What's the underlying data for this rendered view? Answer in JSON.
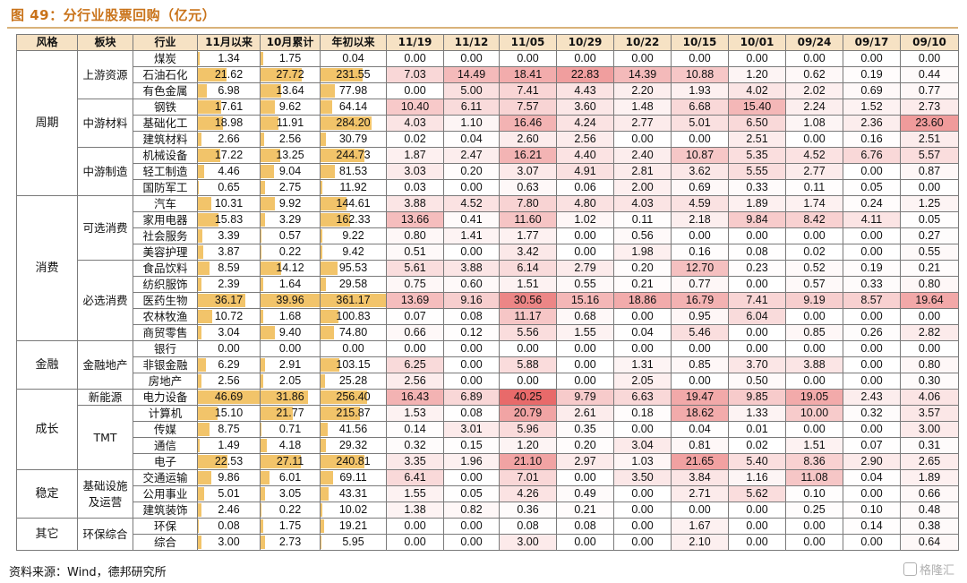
{
  "title": "图 49：分行业股票回购（亿元）",
  "source": "资料来源：Wind，德邦研究所",
  "watermark": "格隆汇",
  "colors": {
    "bar": "#f2c46a",
    "header_bg": "#f6e2c4",
    "title": "#c9731a",
    "heat_max": "#e86a6a"
  },
  "chart_data": {
    "type": "table",
    "columns": [
      "风格",
      "板块",
      "行业",
      "11月以来",
      "10月累计",
      "年初以来",
      "11/19",
      "11/12",
      "11/05",
      "10/29",
      "10/22",
      "10/15",
      "10/01",
      "09/24",
      "09/17",
      "09/10"
    ],
    "groups": [
      {
        "style": "周期",
        "sectors": [
          {
            "name": "上游资源",
            "rows": [
              {
                "industry": "煤炭",
                "values": [
                  1.34,
                  1.75,
                  0.04,
                  0.0,
                  0.0,
                  0.0,
                  0.0,
                  0.0,
                  0.0,
                  0.0,
                  0.0,
                  0.0,
                  0.0
                ]
              },
              {
                "industry": "石油石化",
                "values": [
                  21.62,
                  27.72,
                  231.55,
                  7.03,
                  14.49,
                  18.41,
                  22.83,
                  14.39,
                  10.88,
                  1.2,
                  0.62,
                  0.19,
                  0.44
                ]
              },
              {
                "industry": "有色金属",
                "values": [
                  6.98,
                  13.64,
                  77.98,
                  0.0,
                  5.0,
                  7.41,
                  4.43,
                  2.2,
                  1.93,
                  4.02,
                  2.02,
                  0.69,
                  0.77
                ]
              }
            ]
          },
          {
            "name": "中游材料",
            "rows": [
              {
                "industry": "钢铁",
                "values": [
                  17.61,
                  9.62,
                  64.14,
                  10.4,
                  6.11,
                  7.57,
                  3.6,
                  1.48,
                  6.68,
                  15.4,
                  2.24,
                  1.52,
                  2.73
                ]
              },
              {
                "industry": "基础化工",
                "values": [
                  18.98,
                  11.91,
                  284.2,
                  4.03,
                  1.1,
                  16.46,
                  4.24,
                  2.77,
                  5.01,
                  6.5,
                  1.08,
                  2.36,
                  23.6
                ]
              },
              {
                "industry": "建筑材料",
                "values": [
                  2.66,
                  2.56,
                  30.79,
                  0.02,
                  0.04,
                  2.6,
                  2.56,
                  0.0,
                  0.0,
                  2.51,
                  0.0,
                  0.16,
                  2.51
                ]
              }
            ]
          },
          {
            "name": "中游制造",
            "rows": [
              {
                "industry": "机械设备",
                "values": [
                  17.22,
                  13.25,
                  244.73,
                  1.87,
                  2.47,
                  16.21,
                  4.4,
                  2.4,
                  10.87,
                  5.35,
                  4.52,
                  6.76,
                  5.57
                ]
              },
              {
                "industry": "轻工制造",
                "values": [
                  4.46,
                  9.04,
                  81.53,
                  3.03,
                  0.2,
                  3.07,
                  4.91,
                  2.81,
                  3.62,
                  5.55,
                  2.77,
                  0.0,
                  0.87
                ]
              },
              {
                "industry": "国防军工",
                "values": [
                  0.65,
                  2.75,
                  11.92,
                  0.03,
                  0.0,
                  0.63,
                  0.06,
                  2.0,
                  0.69,
                  0.33,
                  0.11,
                  0.05,
                  0.0
                ]
              }
            ]
          }
        ]
      },
      {
        "style": "消费",
        "sectors": [
          {
            "name": "可选消费",
            "rows": [
              {
                "industry": "汽车",
                "values": [
                  10.31,
                  9.92,
                  144.61,
                  3.88,
                  4.52,
                  7.8,
                  4.8,
                  4.03,
                  4.59,
                  1.89,
                  1.74,
                  0.24,
                  1.25
                ]
              },
              {
                "industry": "家用电器",
                "values": [
                  15.83,
                  3.29,
                  162.33,
                  13.66,
                  0.41,
                  11.6,
                  1.02,
                  0.11,
                  2.18,
                  9.84,
                  8.42,
                  4.11,
                  0.05
                ]
              },
              {
                "industry": "社会服务",
                "values": [
                  3.39,
                  0.57,
                  9.22,
                  0.8,
                  1.41,
                  1.77,
                  0.0,
                  0.56,
                  0.0,
                  0.0,
                  0.0,
                  0.0,
                  0.27
                ]
              },
              {
                "industry": "美容护理",
                "values": [
                  3.87,
                  0.22,
                  9.42,
                  0.51,
                  0.0,
                  3.42,
                  0.0,
                  1.98,
                  0.16,
                  0.08,
                  0.02,
                  0.0,
                  0.55
                ]
              }
            ]
          },
          {
            "name": "必选消费",
            "rows": [
              {
                "industry": "食品饮料",
                "values": [
                  8.59,
                  14.12,
                  95.53,
                  5.61,
                  3.88,
                  6.14,
                  2.79,
                  0.2,
                  12.7,
                  0.23,
                  0.52,
                  0.19,
                  0.21
                ]
              },
              {
                "industry": "纺织服饰",
                "values": [
                  2.39,
                  1.64,
                  29.58,
                  0.75,
                  0.6,
                  1.51,
                  0.55,
                  0.21,
                  0.77,
                  0.0,
                  0.57,
                  0.33,
                  0.8
                ]
              },
              {
                "industry": "医药生物",
                "values": [
                  36.17,
                  39.96,
                  361.17,
                  13.69,
                  9.16,
                  30.56,
                  15.16,
                  18.86,
                  16.79,
                  7.41,
                  9.19,
                  8.57,
                  19.64
                ]
              },
              {
                "industry": "农林牧渔",
                "values": [
                  10.72,
                  1.68,
                  100.83,
                  0.07,
                  0.08,
                  11.17,
                  0.68,
                  0.0,
                  0.95,
                  6.04,
                  0.0,
                  0.0,
                  0.0
                ]
              },
              {
                "industry": "商贸零售",
                "values": [
                  3.04,
                  9.4,
                  74.8,
                  0.66,
                  0.12,
                  5.56,
                  1.55,
                  0.04,
                  5.46,
                  0.0,
                  0.85,
                  0.26,
                  2.82
                ]
              }
            ]
          }
        ]
      },
      {
        "style": "金融",
        "sectors": [
          {
            "name": "金融地产",
            "rows": [
              {
                "industry": "银行",
                "values": [
                  0.0,
                  0.0,
                  0.0,
                  0.0,
                  0.0,
                  0.0,
                  0.0,
                  0.0,
                  0.0,
                  0.0,
                  0.0,
                  0.0,
                  0.0
                ]
              },
              {
                "industry": "非银金融",
                "values": [
                  6.29,
                  2.91,
                  103.15,
                  6.25,
                  0.0,
                  5.88,
                  0.0,
                  1.31,
                  0.85,
                  3.7,
                  3.88,
                  0.0,
                  0.8
                ]
              },
              {
                "industry": "房地产",
                "values": [
                  2.56,
                  2.05,
                  25.28,
                  2.56,
                  0.0,
                  0.0,
                  0.0,
                  2.05,
                  0.0,
                  0.5,
                  0.0,
                  0.0,
                  0.3
                ]
              }
            ]
          }
        ]
      },
      {
        "style": "成长",
        "sectors": [
          {
            "name": "新能源",
            "rows": [
              {
                "industry": "电力设备",
                "values": [
                  46.69,
                  31.86,
                  256.4,
                  16.43,
                  6.89,
                  40.25,
                  9.79,
                  6.63,
                  19.47,
                  9.85,
                  19.05,
                  2.43,
                  4.06
                ]
              }
            ]
          },
          {
            "name": "TMT",
            "rows": [
              {
                "industry": "计算机",
                "values": [
                  15.1,
                  21.77,
                  215.87,
                  1.53,
                  0.08,
                  20.79,
                  2.61,
                  0.18,
                  18.62,
                  1.33,
                  10.0,
                  0.32,
                  3.57
                ]
              },
              {
                "industry": "传媒",
                "values": [
                  8.75,
                  0.71,
                  41.56,
                  0.14,
                  3.01,
                  5.96,
                  0.35,
                  0.0,
                  0.04,
                  0.01,
                  0.0,
                  0.0,
                  3.0
                ]
              },
              {
                "industry": "通信",
                "values": [
                  1.49,
                  4.18,
                  29.32,
                  0.32,
                  0.15,
                  1.2,
                  0.2,
                  3.04,
                  0.81,
                  0.02,
                  1.51,
                  0.07,
                  0.31
                ]
              },
              {
                "industry": "电子",
                "values": [
                  22.53,
                  27.11,
                  240.81,
                  3.35,
                  1.96,
                  21.1,
                  2.97,
                  1.03,
                  21.65,
                  5.4,
                  8.36,
                  2.9,
                  2.65
                ]
              }
            ]
          }
        ]
      },
      {
        "style": "稳定",
        "sectors": [
          {
            "name": "基础设施及运营",
            "rows": [
              {
                "industry": "交通运输",
                "values": [
                  9.86,
                  6.01,
                  69.11,
                  6.41,
                  0.0,
                  7.01,
                  0.0,
                  3.5,
                  3.84,
                  1.16,
                  11.08,
                  0.04,
                  1.89
                ]
              },
              {
                "industry": "公用事业",
                "values": [
                  5.01,
                  3.05,
                  43.31,
                  1.55,
                  0.05,
                  4.26,
                  0.49,
                  0.0,
                  2.71,
                  5.62,
                  0.1,
                  0.0,
                  0.66
                ]
              },
              {
                "industry": "建筑装饰",
                "values": [
                  2.46,
                  0.22,
                  10.02,
                  1.38,
                  0.82,
                  0.36,
                  0.21,
                  0.0,
                  0.0,
                  0.0,
                  0.25,
                  0.1,
                  0.48
                ]
              }
            ]
          }
        ]
      },
      {
        "style": "其它",
        "sectors": [
          {
            "name": "环保综合",
            "rows": [
              {
                "industry": "环保",
                "values": [
                  0.08,
                  1.75,
                  19.21,
                  0.0,
                  0.0,
                  0.08,
                  0.08,
                  0.0,
                  1.67,
                  0.0,
                  0.0,
                  0.14,
                  0.38
                ]
              },
              {
                "industry": "综合",
                "values": [
                  3.0,
                  2.73,
                  5.95,
                  0.0,
                  0.0,
                  3.0,
                  0.0,
                  0.0,
                  2.1,
                  0.0,
                  0.0,
                  0.0,
                  0.64
                ]
              }
            ]
          }
        ]
      }
    ]
  }
}
